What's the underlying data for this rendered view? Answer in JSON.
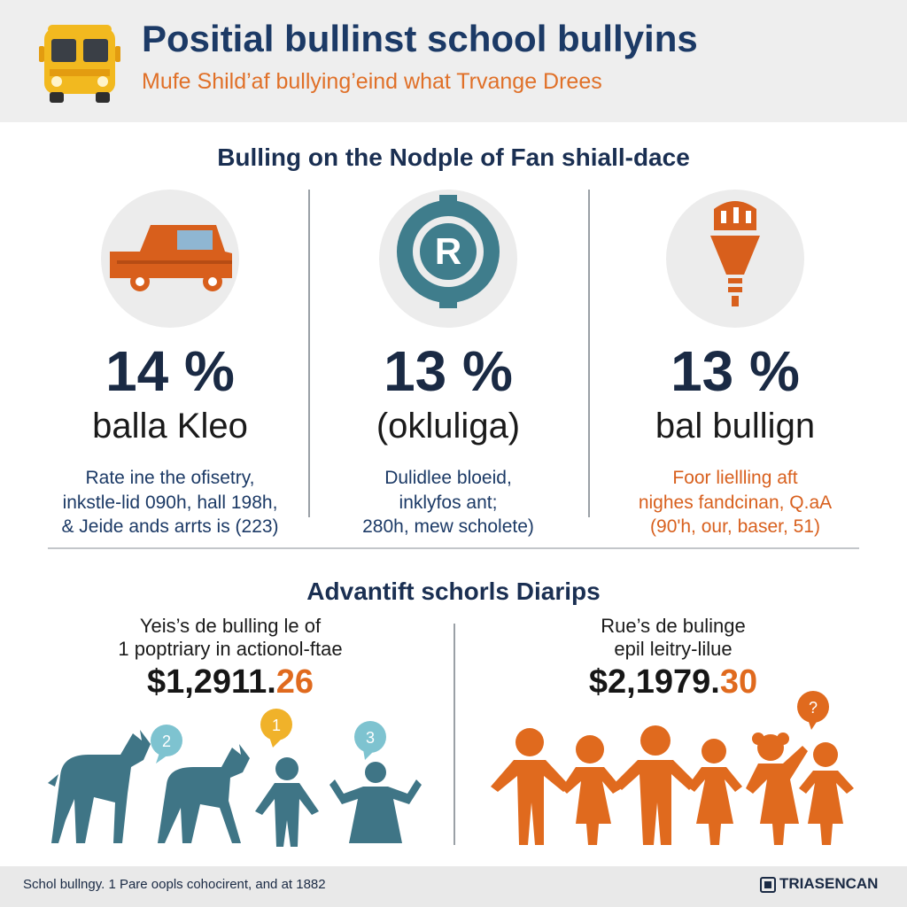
{
  "header": {
    "title": "Positial bullinst school bullyins",
    "subtitle": "Mufe Shild’af bullying’eind what Trvange Drees"
  },
  "section1": {
    "heading": "Bulling on the Nodple of Fan shiall-dace"
  },
  "stats": [
    {
      "icon": "car-icon",
      "percent": "14 %",
      "label": "balla Kleo",
      "desc": [
        "Rate ine the ofisetry,",
        "inkstle-lid 090h, hall 198h,",
        "& Jeide ands arrts is (223)"
      ]
    },
    {
      "icon": "registered-icon",
      "percent": "13 %",
      "label": "(okluliga)",
      "desc": [
        "Dulidlee bloeid,",
        "inklyfos ant;",
        "280h, mew scholete)"
      ]
    },
    {
      "icon": "lamp-icon",
      "percent": "13 %",
      "label": "bal bullign",
      "desc": [
        "Foor liellling aft",
        "nighes fandcinan, Q.aA",
        "(90'h, our, baser, 51)"
      ]
    }
  ],
  "section2": {
    "heading": "Advantift schorls Diarips"
  },
  "costs": [
    {
      "caption": [
        "Yeis’s de bulling le of",
        "1 poptriary in actionol-ftae"
      ],
      "amount_main": "$1,2911.",
      "amount_accent": "26",
      "figures": [
        "animal-figure",
        "animal-figure",
        "child-figure",
        "child-figure"
      ],
      "badges": [
        "2",
        "1",
        "3"
      ]
    },
    {
      "caption": [
        "Rue’s de bulinge",
        "epil leitry-lilue"
      ],
      "amount_main": "$2,1979.",
      "amount_accent": "30",
      "figures": [
        "people-group"
      ],
      "badges": [
        "?"
      ]
    }
  ],
  "footer": {
    "text": "Schol bullngy. 1 Pare oopls cohocirent, and at 1882",
    "brand": "TRIASENCAN"
  },
  "colors": {
    "navy": "#1c3a66",
    "orange": "#e07028",
    "teal": "#3f7d8c",
    "accent_amount": "#e06a1e"
  }
}
